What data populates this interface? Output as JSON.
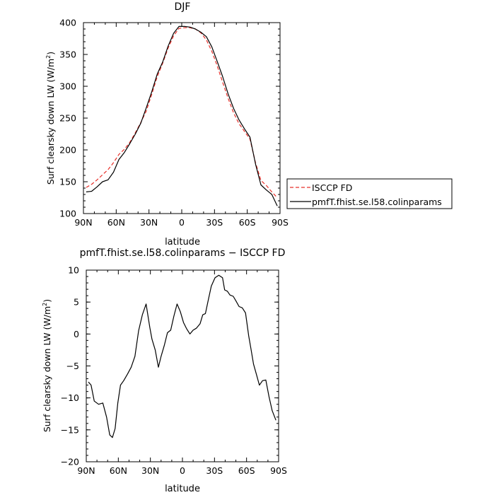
{
  "chart_data": [
    {
      "type": "line",
      "title": "DJF",
      "xlabel": "latitude",
      "ylabel": "Surf clearsky down LW (W/m",
      "ylabel_sup": "2",
      "ylabel_close": ")",
      "xlim": [
        90,
        -90
      ],
      "ylim": [
        100,
        400
      ],
      "xticks": [
        90,
        60,
        30,
        0,
        -30,
        -60,
        -90
      ],
      "xtick_labels": [
        "90N",
        "60N",
        "30N",
        "0",
        "30S",
        "60S",
        "90S"
      ],
      "yticks": [
        100,
        150,
        200,
        250,
        300,
        350,
        400
      ],
      "ytick_labels": [
        "100",
        "150",
        "200",
        "250",
        "300",
        "350",
        "400"
      ],
      "legend_position": "right-outside",
      "series": [
        {
          "name": "ISCCP FD",
          "color": "#e8302a",
          "dash": "dashed",
          "x": [
            87.5,
            82.5,
            77.5,
            72.5,
            67.5,
            62.5,
            57.5,
            52.5,
            47.5,
            42.5,
            37.5,
            32.5,
            27.5,
            22.5,
            17.5,
            12.5,
            7.5,
            2.5,
            -2.5,
            -7.5,
            -12.5,
            -17.5,
            -22.5,
            -27.5,
            -32.5,
            -37.5,
            -42.5,
            -47.5,
            -52.5,
            -57.5,
            -62.5,
            -67.5,
            -72.5,
            -77.5,
            -82.5,
            -87.5
          ],
          "y": [
            141,
            146,
            153,
            161,
            169,
            180,
            193,
            201,
            212,
            227,
            243,
            261,
            287,
            315,
            336,
            360,
            379,
            391,
            392,
            392,
            390,
            384,
            373,
            355,
            332,
            306,
            281,
            258,
            241,
            229,
            217,
            180,
            152,
            144,
            134,
            125
          ]
        },
        {
          "name": "pmfT.fhist.se.l58.colinparams",
          "color": "#000000",
          "dash": "solid",
          "x": [
            87.5,
            82.5,
            77.5,
            72.5,
            67.5,
            62.5,
            57.5,
            52.5,
            47.5,
            42.5,
            37.5,
            32.5,
            27.5,
            22.5,
            17.5,
            12.5,
            7.5,
            2.5,
            -2.5,
            -7.5,
            -12.5,
            -17.5,
            -22.5,
            -27.5,
            -32.5,
            -37.5,
            -42.5,
            -47.5,
            -52.5,
            -57.5,
            -62.5,
            -67.5,
            -72.5,
            -77.5,
            -82.5,
            -87.5
          ],
          "y": [
            134,
            135,
            142,
            150,
            153,
            165,
            185,
            196,
            210,
            225,
            242,
            266,
            291,
            319,
            338,
            363,
            383,
            394,
            394,
            393,
            390,
            385,
            378,
            362,
            339,
            315,
            288,
            265,
            247,
            233,
            220,
            178,
            145,
            137,
            130,
            112
          ]
        }
      ]
    },
    {
      "type": "line",
      "title": "pmfT.fhist.se.l58.colinparams − ISCCP FD",
      "xlabel": "latitude",
      "ylabel": "Surf clearsky down LW (W/m",
      "ylabel_sup": "2",
      "ylabel_close": ")",
      "xlim": [
        90,
        -90
      ],
      "ylim": [
        -20,
        10
      ],
      "xticks": [
        90,
        60,
        30,
        0,
        -30,
        -60,
        -90
      ],
      "xtick_labels": [
        "90N",
        "60N",
        "30N",
        "0",
        "30S",
        "60S",
        "90S"
      ],
      "yticks": [
        -20,
        -15,
        -10,
        -5,
        0,
        5,
        10
      ],
      "ytick_labels": [
        "−20",
        "−15",
        "−10",
        "−5",
        "0",
        "5",
        "10"
      ],
      "series": [
        {
          "color": "#000000",
          "dash": "solid",
          "x": [
            88,
            85.5,
            82.5,
            78.5,
            74.5,
            71,
            68,
            65.5,
            63,
            60.5,
            58,
            55,
            51.5,
            48,
            44.5,
            41,
            37.5,
            34,
            30.5,
            28.5,
            25.5,
            22.5,
            20,
            17,
            14,
            11,
            8,
            5,
            2,
            -1,
            -4,
            -7,
            -10,
            -13,
            -16.5,
            -19,
            -21.5,
            -24,
            -27,
            -30.5,
            -34,
            -37.5,
            -39.5,
            -42,
            -44.5,
            -47.5,
            -50,
            -53,
            -56,
            -59,
            -62,
            -64,
            -66.5,
            -69,
            -72,
            -75,
            -78,
            -81,
            -84,
            -87.5
          ],
          "y": [
            -7.5,
            -8,
            -10.5,
            -11,
            -10.8,
            -13,
            -15.8,
            -16.2,
            -14.8,
            -10.8,
            -8,
            -7.3,
            -6.3,
            -5.2,
            -3.5,
            0.5,
            3,
            4.7,
            1,
            -0.8,
            -2.5,
            -5.2,
            -3.5,
            -1.8,
            0.2,
            0.6,
            2.8,
            4.7,
            3.5,
            1.8,
            0.8,
            0,
            0.6,
            0.9,
            1.6,
            3,
            3.2,
            5.2,
            7.5,
            8.8,
            9.2,
            8.8,
            6.9,
            6.7,
            6.1,
            5.9,
            5.2,
            4.3,
            4.1,
            3.3,
            -0.3,
            -2.2,
            -4.7,
            -6.2,
            -8,
            -7.3,
            -7.2,
            -9.8,
            -12,
            -13.5
          ]
        }
      ]
    }
  ]
}
